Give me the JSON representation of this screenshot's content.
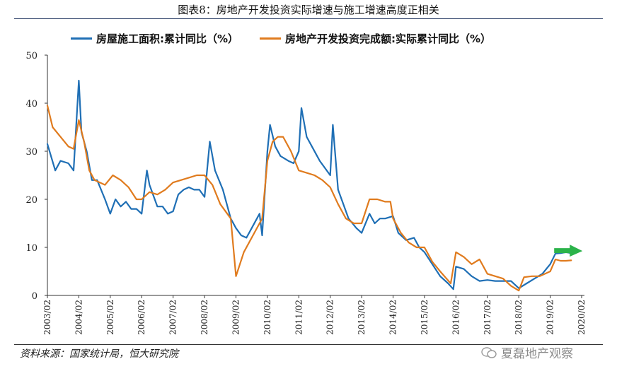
{
  "figure_title": "图表8：房地产开发投资实际增速与施工增速高度正相关",
  "source_note": "资料来源：国家统计局，恒大研究院",
  "watermark_text": "夏磊地产观察",
  "colors": {
    "construction": "#1f6fb5",
    "investment": "#e07b1e",
    "arrow": "#2bb34a",
    "axis": "#333333"
  },
  "chart_data": {
    "type": "line",
    "xlabel": "",
    "ylabel": "",
    "ylim": [
      0,
      50
    ],
    "yticks": [
      0,
      10,
      20,
      30,
      40,
      50
    ],
    "xticks": [
      "2003/02",
      "2004/02",
      "2005/02",
      "2006/02",
      "2007/02",
      "2008/02",
      "2009/02",
      "2010/02",
      "2011/02",
      "2012/02",
      "2013/02",
      "2014/02",
      "2015/02",
      "2016/02",
      "2017/02",
      "2018/02",
      "2019/02",
      "2020/02"
    ],
    "legend_position": "top",
    "series": [
      {
        "name": "房屋施工面积:累计同比（%）",
        "color_key": "construction",
        "points": [
          [
            "2003/02",
            31.5
          ],
          [
            "2003/05",
            26
          ],
          [
            "2003/07",
            28
          ],
          [
            "2003/10",
            27.5
          ],
          [
            "2003/12",
            26
          ],
          [
            "2004/02",
            44.7
          ],
          [
            "2004/03",
            34
          ],
          [
            "2004/05",
            30
          ],
          [
            "2004/07",
            24
          ],
          [
            "2004/09",
            24
          ],
          [
            "2004/12",
            20
          ],
          [
            "2005/02",
            17
          ],
          [
            "2005/04",
            20
          ],
          [
            "2005/06",
            18.5
          ],
          [
            "2005/08",
            19.5
          ],
          [
            "2005/10",
            18
          ],
          [
            "2005/12",
            18
          ],
          [
            "2006/02",
            17
          ],
          [
            "2006/04",
            26
          ],
          [
            "2006/05",
            23
          ],
          [
            "2006/07",
            20
          ],
          [
            "2006/08",
            18.5
          ],
          [
            "2006/10",
            18.5
          ],
          [
            "2006/12",
            17
          ],
          [
            "2007/02",
            17.5
          ],
          [
            "2007/04",
            21
          ],
          [
            "2007/06",
            22
          ],
          [
            "2007/08",
            22.5
          ],
          [
            "2007/10",
            22
          ],
          [
            "2007/12",
            22
          ],
          [
            "2008/02",
            20.5
          ],
          [
            "2008/04",
            32
          ],
          [
            "2008/06",
            26
          ],
          [
            "2008/09",
            22
          ],
          [
            "2008/12",
            16
          ],
          [
            "2009/02",
            14
          ],
          [
            "2009/04",
            12.5
          ],
          [
            "2009/06",
            12
          ],
          [
            "2009/08",
            14
          ],
          [
            "2009/10",
            16
          ],
          [
            "2009/11",
            17
          ],
          [
            "2009/12",
            12.5
          ],
          [
            "2010/02",
            30
          ],
          [
            "2010/03",
            35.5
          ],
          [
            "2010/05",
            31
          ],
          [
            "2010/07",
            29
          ],
          [
            "2010/10",
            28
          ],
          [
            "2010/12",
            27.5
          ],
          [
            "2011/02",
            30
          ],
          [
            "2011/03",
            39
          ],
          [
            "2011/05",
            33
          ],
          [
            "2011/07",
            31
          ],
          [
            "2011/09",
            29
          ],
          [
            "2011/10",
            28
          ],
          [
            "2012/02",
            25
          ],
          [
            "2012/03",
            35.5
          ],
          [
            "2012/05",
            22
          ],
          [
            "2012/07",
            19
          ],
          [
            "2012/09",
            16
          ],
          [
            "2012/12",
            14
          ],
          [
            "2013/02",
            13
          ],
          [
            "2013/05",
            17
          ],
          [
            "2013/07",
            15
          ],
          [
            "2013/09",
            16
          ],
          [
            "2013/11",
            16
          ],
          [
            "2014/02",
            16.5
          ],
          [
            "2014/04",
            13
          ],
          [
            "2014/07",
            11.5
          ],
          [
            "2014/10",
            12
          ],
          [
            "2014/12",
            10
          ],
          [
            "2015/02",
            9
          ],
          [
            "2015/05",
            6.5
          ],
          [
            "2015/08",
            4
          ],
          [
            "2015/11",
            2.5
          ],
          [
            "2016/01",
            1.3
          ],
          [
            "2016/02",
            6
          ],
          [
            "2016/05",
            5.5
          ],
          [
            "2016/08",
            4
          ],
          [
            "2016/11",
            3
          ],
          [
            "2017/02",
            3.2
          ],
          [
            "2017/05",
            3
          ],
          [
            "2017/08",
            3
          ],
          [
            "2017/11",
            3
          ],
          [
            "2018/02",
            1.5
          ],
          [
            "2018/05",
            2.5
          ],
          [
            "2018/08",
            3.5
          ],
          [
            "2018/11",
            4.5
          ],
          [
            "2019/02",
            6.5
          ],
          [
            "2019/04",
            8.7
          ],
          [
            "2019/06",
            8.8
          ],
          [
            "2019/08",
            9
          ],
          [
            "2019/10",
            8.8
          ]
        ]
      },
      {
        "name": "房地产开发投资完成额:实际累计同比（%）",
        "color_key": "investment",
        "points": [
          [
            "2003/02",
            39.5
          ],
          [
            "2003/04",
            35
          ],
          [
            "2003/07",
            33
          ],
          [
            "2003/10",
            31
          ],
          [
            "2003/12",
            30.5
          ],
          [
            "2004/02",
            36.5
          ],
          [
            "2004/04",
            32
          ],
          [
            "2004/06",
            26
          ],
          [
            "2004/08",
            24
          ],
          [
            "2004/12",
            23
          ],
          [
            "2005/03",
            25
          ],
          [
            "2005/06",
            24
          ],
          [
            "2005/09",
            22.5
          ],
          [
            "2005/12",
            20
          ],
          [
            "2006/02",
            20
          ],
          [
            "2006/05",
            21.5
          ],
          [
            "2006/08",
            21
          ],
          [
            "2006/11",
            22
          ],
          [
            "2007/02",
            23.5
          ],
          [
            "2007/05",
            24
          ],
          [
            "2007/08",
            24.5
          ],
          [
            "2007/11",
            25
          ],
          [
            "2008/02",
            25
          ],
          [
            "2008/05",
            23
          ],
          [
            "2008/08",
            19
          ],
          [
            "2008/12",
            16
          ],
          [
            "2009/02",
            4
          ],
          [
            "2009/05",
            9
          ],
          [
            "2009/08",
            12
          ],
          [
            "2009/11",
            15
          ],
          [
            "2009/12",
            16
          ],
          [
            "2010/02",
            28
          ],
          [
            "2010/04",
            32
          ],
          [
            "2010/06",
            33
          ],
          [
            "2010/08",
            33
          ],
          [
            "2010/11",
            30
          ],
          [
            "2011/02",
            26
          ],
          [
            "2011/05",
            25.5
          ],
          [
            "2011/08",
            25
          ],
          [
            "2011/11",
            24
          ],
          [
            "2012/02",
            22.5
          ],
          [
            "2012/05",
            19
          ],
          [
            "2012/08",
            16
          ],
          [
            "2012/11",
            15
          ],
          [
            "2013/02",
            15
          ],
          [
            "2013/05",
            20
          ],
          [
            "2013/08",
            20
          ],
          [
            "2013/11",
            19.5
          ],
          [
            "2014/01",
            19.5
          ],
          [
            "2014/02",
            16
          ],
          [
            "2014/05",
            13
          ],
          [
            "2014/08",
            11
          ],
          [
            "2014/11",
            10
          ],
          [
            "2015/02",
            10
          ],
          [
            "2015/05",
            7
          ],
          [
            "2015/08",
            5
          ],
          [
            "2015/12",
            2.5
          ],
          [
            "2016/02",
            9
          ],
          [
            "2016/05",
            8
          ],
          [
            "2016/08",
            6.5
          ],
          [
            "2016/11",
            7.5
          ],
          [
            "2017/02",
            4.5
          ],
          [
            "2017/05",
            4
          ],
          [
            "2017/08",
            3.5
          ],
          [
            "2017/11",
            2
          ],
          [
            "2018/02",
            1
          ],
          [
            "2018/04",
            3.8
          ],
          [
            "2018/07",
            4
          ],
          [
            "2018/10",
            4
          ],
          [
            "2019/02",
            5
          ],
          [
            "2019/04",
            7.5
          ],
          [
            "2019/06",
            7.2
          ],
          [
            "2019/08",
            7.2
          ],
          [
            "2019/10",
            7.3
          ]
        ]
      }
    ]
  }
}
